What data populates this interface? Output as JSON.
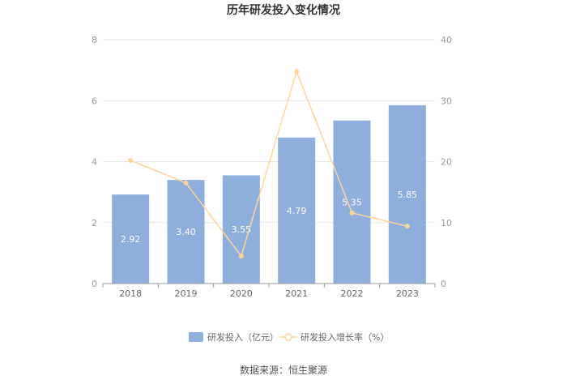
{
  "chart_data": {
    "type": "bar",
    "title": "历年研发投入变化情况",
    "categories": [
      "2018",
      "2019",
      "2020",
      "2021",
      "2022",
      "2023"
    ],
    "series": [
      {
        "name": "研发投入（亿元）",
        "type": "bar",
        "axis": "left",
        "color": "#8eaedb",
        "values": [
          2.92,
          3.4,
          3.55,
          4.79,
          5.35,
          5.85
        ],
        "labels": [
          "2.92",
          "3.40",
          "3.55",
          "4.79",
          "5.35",
          "5.85"
        ]
      },
      {
        "name": "研发投入增长率（%）",
        "type": "line",
        "axis": "right",
        "color": "#fdd59b",
        "values": [
          20.2,
          16.5,
          4.5,
          34.8,
          11.6,
          9.4
        ]
      }
    ],
    "y_left": {
      "min": 0,
      "max": 8,
      "ticks": [
        "0",
        "2",
        "4",
        "6",
        "8"
      ]
    },
    "y_right": {
      "min": 0,
      "max": 40,
      "ticks": [
        "0",
        "10",
        "20",
        "30",
        "40"
      ]
    },
    "grid": true,
    "legend_position": "bottom"
  },
  "source": "数据来源：恒生聚源"
}
